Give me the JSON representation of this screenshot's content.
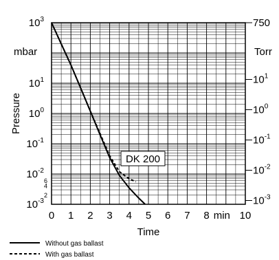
{
  "chart_data": {
    "type": "line",
    "ylabel": "Pressure",
    "xlabel": "Time",
    "x_unit_label": "min",
    "left_unit_label": "mbar",
    "right_unit_label": "Torr",
    "annotation": "DK 200",
    "xlim": [
      0,
      10
    ],
    "ylim": [
      0.001,
      1000
    ],
    "y_scale": "log",
    "grid": true,
    "x_ticks": [
      "0",
      "1",
      "2",
      "3",
      "4",
      "5",
      "6",
      "7",
      "8",
      "min",
      "10"
    ],
    "left_ticks": [
      {
        "base": "10",
        "exp": "3",
        "value": 1000
      },
      {
        "base": "10",
        "exp": "1",
        "value": 10
      },
      {
        "base": "10",
        "exp": "0",
        "value": 1
      },
      {
        "base": "10",
        "exp": "-1",
        "value": 0.1
      },
      {
        "base": "10",
        "exp": "-2",
        "value": 0.01
      },
      {
        "base": "10",
        "exp": "-3",
        "value": 0.001
      }
    ],
    "left_minor_ticks": [
      {
        "label": "6",
        "value": 0.006
      },
      {
        "label": "4",
        "value": 0.004
      },
      {
        "label": "2",
        "value": 0.002
      }
    ],
    "right_ticks": [
      {
        "base": "750",
        "exp": "",
        "value": 1000
      },
      {
        "base": "10",
        "exp": "1",
        "value": 13.33
      },
      {
        "base": "10",
        "exp": "0",
        "value": 1.333
      },
      {
        "base": "10",
        "exp": "-1",
        "value": 0.1333
      },
      {
        "base": "10",
        "exp": "-2",
        "value": 0.01333
      },
      {
        "base": "10",
        "exp": "-3",
        "value": 0.001333
      }
    ],
    "series": [
      {
        "name": "Without gas ballast",
        "style": "solid",
        "x": [
          0,
          0.5,
          1.0,
          1.5,
          2.0,
          2.5,
          3.0,
          3.5,
          4.0,
          4.5,
          4.83
        ],
        "y": [
          1000,
          200,
          40,
          7,
          1.2,
          0.2,
          0.035,
          0.009,
          0.0035,
          0.0016,
          0.001
        ]
      },
      {
        "name": "With gas ballast",
        "style": "dashed",
        "x": [
          0,
          0.5,
          1.0,
          1.5,
          2.0,
          2.5,
          3.0,
          3.5,
          4.0,
          4.35
        ],
        "y": [
          1000,
          200,
          40,
          7,
          1.2,
          0.22,
          0.04,
          0.012,
          0.007,
          0.0055
        ]
      }
    ],
    "legend": [
      {
        "label": "Without gas ballast",
        "style": "solid"
      },
      {
        "label": "With gas ballast",
        "style": "dashed"
      }
    ],
    "legend_position": "bottom-left"
  }
}
